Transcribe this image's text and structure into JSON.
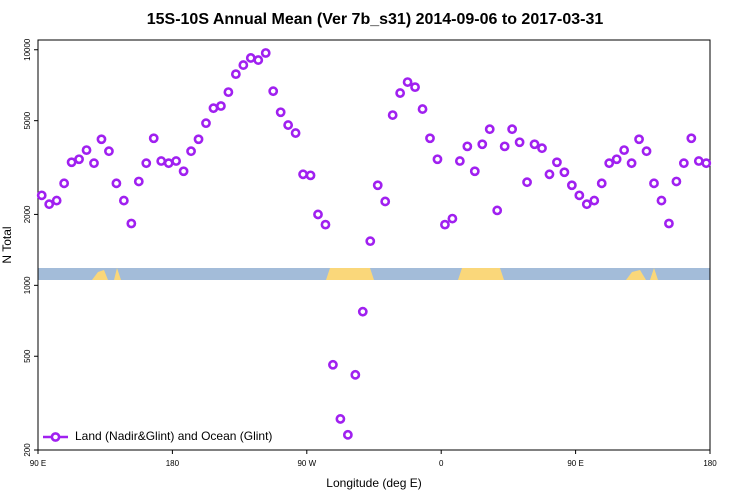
{
  "chart_data": {
    "type": "scatter",
    "title": "15S-10S Annual Mean (Ver 7b_s31)   2014-09-06 to 2017-03-31",
    "x_label": "Longitude (deg E)",
    "y_label": "N Total",
    "yscale": "log",
    "legend": "lower left",
    "xlim": [
      90,
      540
    ],
    "xticks": [
      {
        "value": 90,
        "label": "90 E"
      },
      {
        "value": 180,
        "label": "180"
      },
      {
        "value": 270,
        "label": "90 W"
      },
      {
        "value": 360,
        "label": "0"
      },
      {
        "value": 450,
        "label": "90 E"
      },
      {
        "value": 540,
        "label": "180"
      }
    ],
    "ylim": [
      200,
      11000
    ],
    "yticks": [
      200,
      500,
      1000,
      2000,
      5000,
      10000
    ],
    "series": [
      {
        "name": "Land (Nadir&Glint) and Ocean (Glint)",
        "color": "#a020f0",
        "x": [
          92.5,
          97.5,
          102.5,
          107.5,
          112.5,
          117.5,
          122.5,
          127.5,
          132.5,
          137.5,
          142.5,
          147.5,
          152.5,
          157.5,
          162.5,
          167.5,
          172.5,
          177.5,
          182.5,
          187.5,
          192.5,
          197.5,
          202.5,
          207.5,
          212.5,
          217.5,
          222.5,
          227.5,
          232.5,
          237.5,
          242.5,
          247.5,
          252.5,
          257.5,
          262.5,
          267.5,
          272.5,
          277.5,
          282.5,
          287.5,
          292.5,
          297.5,
          302.5,
          307.5,
          312.5,
          317.5,
          322.5,
          327.5,
          332.5,
          337.5,
          342.5,
          347.5,
          352.5,
          357.5,
          362.5,
          367.5,
          372.5,
          377.5,
          382.5,
          387.5,
          392.5,
          397.5,
          402.5,
          407.5,
          412.5,
          417.5,
          422.5,
          427.5,
          432.5,
          437.5,
          442.5,
          447.5,
          452.5,
          457.5,
          462.5,
          467.5,
          472.5,
          477.5,
          482.5,
          487.5,
          492.5,
          497.5,
          502.5,
          507.5,
          512.5,
          517.5,
          522.5,
          527.5,
          532.5,
          537.5
        ],
        "values": [
          2410,
          2210,
          2290,
          2710,
          3330,
          3430,
          3750,
          3300,
          4170,
          3710,
          2710,
          2290,
          1830,
          2760,
          3300,
          4210,
          3370,
          3300,
          3370,
          3050,
          3710,
          4170,
          4880,
          5650,
          5770,
          6610,
          7880,
          8610,
          9230,
          9040,
          9690,
          6670,
          5430,
          4790,
          4430,
          2960,
          2930,
          2000,
          1810,
          460,
          271,
          232,
          417,
          773,
          1540,
          2660,
          2270,
          5280,
          6550,
          7290,
          6940,
          5600,
          4210,
          3430,
          1810,
          1920,
          3370,
          3890,
          3050,
          3970,
          4600,
          2080,
          3890,
          4600,
          4050,
          2740,
          3970,
          3820,
          2960,
          3330,
          3020,
          2660,
          2410,
          2210,
          2290,
          2710,
          3300,
          3430,
          3750,
          3300,
          4170,
          3710,
          2710,
          2290,
          1830,
          2760,
          3300,
          4210,
          3370,
          3300
        ]
      }
    ]
  }
}
